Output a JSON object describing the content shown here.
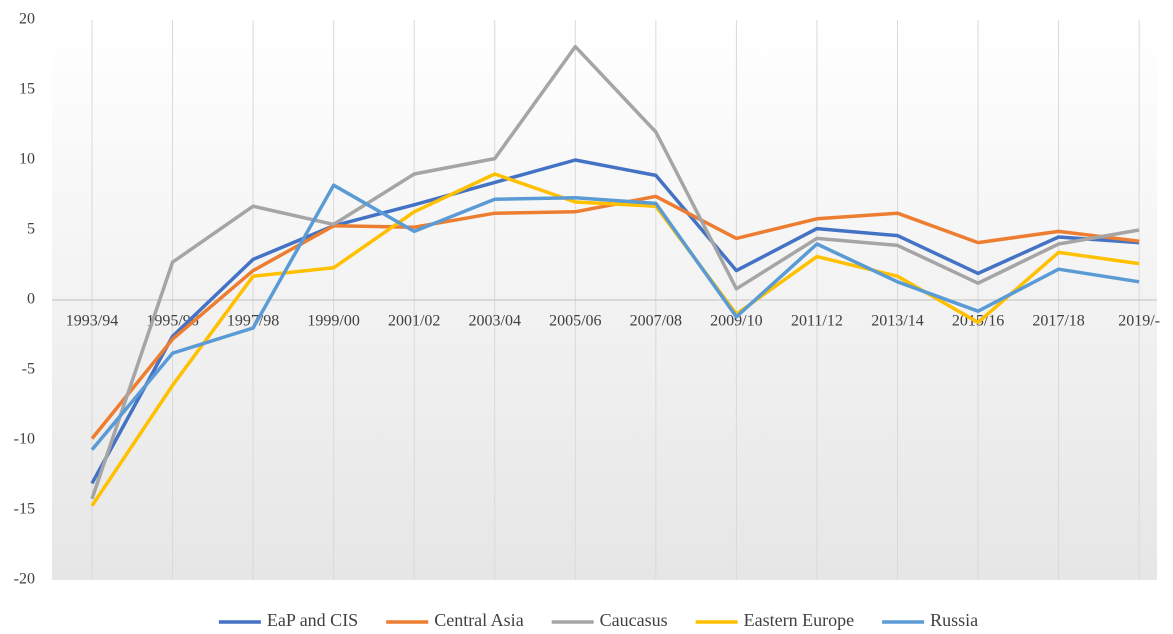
{
  "chart_data": {
    "type": "line",
    "categories": [
      "1993/94",
      "1995/96",
      "1997/98",
      "1999/00",
      "2001/02",
      "2003/04",
      "2005/06",
      "2007/08",
      "2009/10",
      "2011/12",
      "2013/14",
      "2015/16",
      "2017/18",
      "2019/-"
    ],
    "series": [
      {
        "name": "EaP and CIS",
        "color": "#4472c4",
        "values": [
          -13.1,
          -2.6,
          2.9,
          5.3,
          6.8,
          8.4,
          10.0,
          8.9,
          2.1,
          5.1,
          4.6,
          1.9,
          4.5,
          4.1
        ]
      },
      {
        "name": "Central Asia",
        "color": "#ed7d31",
        "values": [
          -9.9,
          -2.8,
          2.1,
          5.3,
          5.2,
          6.2,
          6.3,
          7.4,
          4.4,
          5.8,
          6.2,
          4.1,
          4.9,
          4.2
        ]
      },
      {
        "name": "Caucasus",
        "color": "#a5a5a5",
        "values": [
          -14.2,
          2.7,
          6.7,
          5.4,
          9.0,
          10.1,
          18.1,
          12.0,
          0.8,
          4.4,
          3.9,
          1.2,
          4.0,
          5.0
        ]
      },
      {
        "name": "Eastern Europe",
        "color": "#ffc000",
        "values": [
          -14.7,
          -6.1,
          1.7,
          2.3,
          6.3,
          9.0,
          7.0,
          6.7,
          -1.0,
          3.1,
          1.7,
          -1.6,
          3.4,
          2.6
        ]
      },
      {
        "name": "Russia",
        "color": "#5b9bd5",
        "values": [
          -10.7,
          -3.8,
          -2.0,
          8.2,
          4.9,
          7.2,
          7.3,
          6.9,
          -1.2,
          4.0,
          1.3,
          -0.8,
          2.2,
          1.3
        ]
      }
    ],
    "ylim": [
      -20,
      20
    ],
    "yticks": [
      -20,
      -15,
      -10,
      -5,
      0,
      5,
      10,
      15,
      20
    ],
    "legend": "bottom"
  }
}
